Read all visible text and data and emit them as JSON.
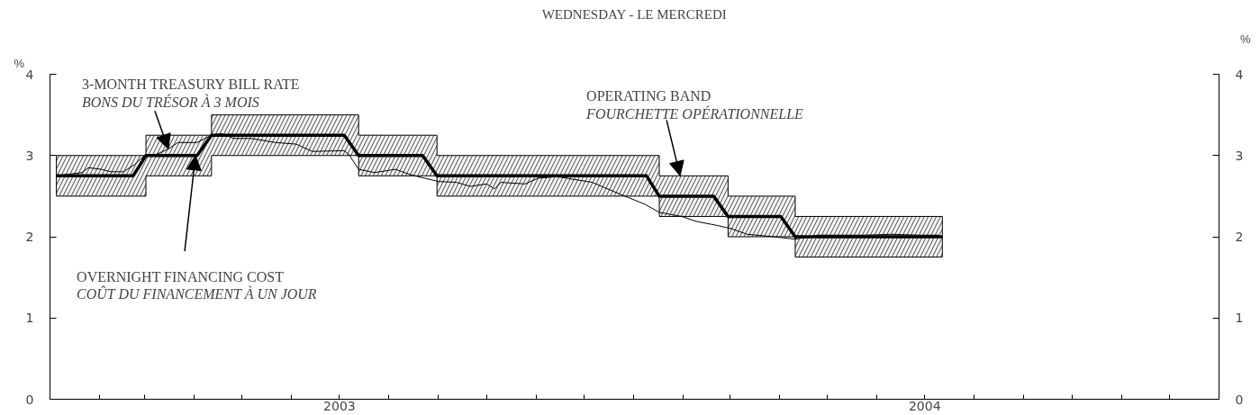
{
  "chart_data": {
    "type": "line",
    "title": "WEDNESDAY - LE MERCREDI",
    "ylabel": "%",
    "y2label": "%",
    "xlim": [
      "2003-01-01",
      "2005-01-01"
    ],
    "xticks": [
      {
        "value": "2003-01",
        "label": null
      },
      {
        "value": "2003-02",
        "label": null
      },
      {
        "value": "2003-03",
        "label": null
      },
      {
        "value": "2003-04",
        "label": null
      },
      {
        "value": "2003-05",
        "label": null
      },
      {
        "value": "2003-06",
        "label": null
      },
      {
        "value": "2003-07",
        "label": "2003"
      },
      {
        "value": "2003-08",
        "label": null
      },
      {
        "value": "2003-09",
        "label": null
      },
      {
        "value": "2003-10",
        "label": null
      },
      {
        "value": "2003-11",
        "label": null
      },
      {
        "value": "2003-12",
        "label": null
      },
      {
        "value": "2004-01",
        "label": null
      },
      {
        "value": "2004-02",
        "label": null
      },
      {
        "value": "2004-03",
        "label": null
      },
      {
        "value": "2004-04",
        "label": null
      },
      {
        "value": "2004-05",
        "label": null
      },
      {
        "value": "2004-06",
        "label": null
      },
      {
        "value": "2004-07",
        "label": "2004"
      },
      {
        "value": "2004-08",
        "label": null
      },
      {
        "value": "2004-09",
        "label": null
      },
      {
        "value": "2004-10",
        "label": null
      },
      {
        "value": "2004-11",
        "label": null
      },
      {
        "value": "2004-12",
        "label": null
      },
      {
        "value": "2005-01",
        "label": null
      }
    ],
    "ylim": [
      0,
      4
    ],
    "yticks": [
      0,
      1,
      2,
      3,
      4
    ],
    "y2lim": [
      0,
      4
    ],
    "y2ticks": [
      0,
      1,
      2,
      3,
      4
    ],
    "grid": false,
    "annotations": [
      {
        "text": "3-MONTH TREASURY BILL RATE\nBONS DU TRÉSOR À 3 MOIS",
        "x": "2003-03-16",
        "y": 3.08
      },
      {
        "text": "OVERNIGHT FINANCING COST\nCOÛT DU FINANCEMENT À UN JOUR",
        "x": "2003-04-02",
        "y": 3.0
      },
      {
        "text": "OPERATING BAND\nFOURCHETTE OPÉRATIONNELLE",
        "x": "2004-01-30",
        "y": 2.75
      }
    ],
    "series": [
      {
        "color": "#000000",
        "x": [
          "2003-01-05",
          "2003-02-22",
          "2003-03-02",
          "2003-04-03",
          "2003-04-12",
          "2003-07-04",
          "2003-07-13",
          "2003-08-22",
          "2003-08-31",
          "2004-01-09",
          "2004-01-17",
          "2004-02-20",
          "2004-02-29",
          "2004-04-02",
          "2004-04-11",
          "2004-07-12"
        ],
        "values": [
          2.75,
          2.75,
          3.0,
          3.0,
          3.25,
          3.25,
          3.0,
          3.0,
          2.75,
          2.75,
          2.5,
          2.5,
          2.25,
          2.25,
          2.0,
          2.0
        ],
        "lower": [
          2.5,
          2.5,
          2.75,
          2.75,
          3.0,
          3.0,
          2.75,
          2.75,
          2.5,
          2.5,
          2.25,
          2.25,
          2.0,
          2.0,
          1.75,
          1.75
        ],
        "upper": [
          3.0,
          3.0,
          3.25,
          3.25,
          3.5,
          3.5,
          3.25,
          3.25,
          3.0,
          3.0,
          2.75,
          2.75,
          2.5,
          2.5,
          2.25,
          2.25
        ]
      },
      {
        "color": "#000000",
        "x": [
          "2003-01-05",
          "2003-01-21",
          "2003-01-25",
          "2003-02-02",
          "2003-02-08",
          "2003-02-16",
          "2003-02-23",
          "2003-03-01",
          "2003-03-08",
          "2003-03-16",
          "2003-03-22",
          "2003-04-03",
          "2003-04-12",
          "2003-04-18",
          "2003-04-26",
          "2003-05-07",
          "2003-05-22",
          "2003-06-04",
          "2003-06-14",
          "2003-07-04",
          "2003-07-07",
          "2003-07-13",
          "2003-07-23",
          "2003-08-05",
          "2003-08-15",
          "2003-09-01",
          "2003-09-12",
          "2003-09-21",
          "2003-10-01",
          "2003-10-06",
          "2003-10-10",
          "2003-10-25",
          "2003-11-02",
          "2003-11-14",
          "2003-12-06",
          "2003-12-24",
          "2004-01-08",
          "2004-01-17",
          "2004-01-31",
          "2004-02-09",
          "2004-02-22",
          "2004-03-02",
          "2004-03-12",
          "2004-03-29",
          "2004-04-11",
          "2004-04-25",
          "2004-05-09",
          "2004-05-24",
          "2004-06-10",
          "2004-06-27",
          "2004-07-10"
        ],
        "values": [
          2.75,
          2.79,
          2.85,
          2.83,
          2.8,
          2.8,
          2.89,
          3.0,
          3.01,
          3.08,
          3.16,
          3.16,
          3.25,
          3.27,
          3.21,
          3.21,
          3.16,
          3.14,
          3.05,
          3.06,
          3.01,
          2.83,
          2.79,
          2.83,
          2.76,
          2.68,
          2.67,
          2.62,
          2.65,
          2.59,
          2.67,
          2.65,
          2.72,
          2.74,
          2.67,
          2.52,
          2.4,
          2.3,
          2.25,
          2.19,
          2.14,
          2.1,
          2.03,
          2.0,
          1.97,
          2.02,
          2.02,
          2.02,
          2.03,
          2.02,
          2.02
        ]
      }
    ]
  }
}
